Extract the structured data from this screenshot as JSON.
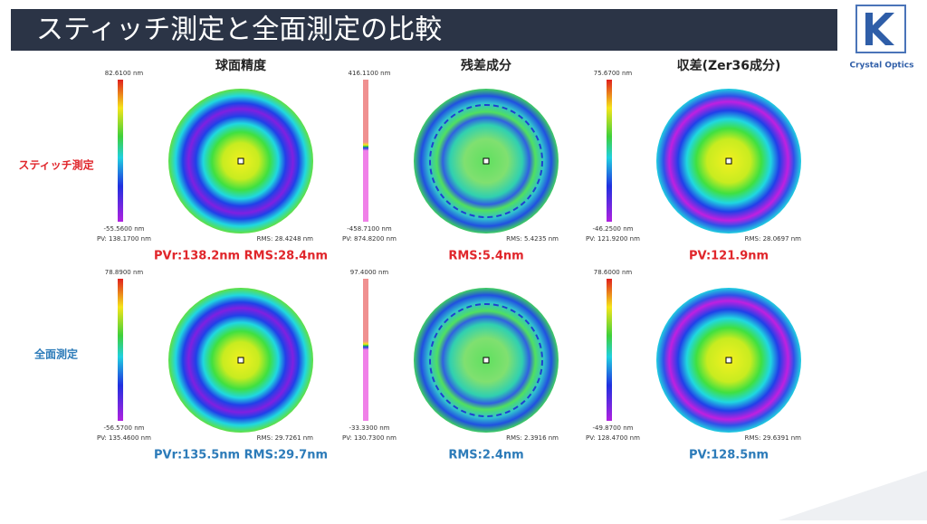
{
  "header": {
    "title": "スティッチ測定と全面測定の比較",
    "logo": "Crystal Optics"
  },
  "columns": [
    "球面精度",
    "残差成分",
    "収差(Zer36成分)"
  ],
  "rows": [
    {
      "label": "スティッチ測定",
      "color": "#e0262b",
      "panels": [
        {
          "max": "82.6100 nm",
          "min": "-55.5600 nm",
          "pv": "PV: 138.1700 nm",
          "rms": "RMS: 28.4248 nm",
          "result": "PVr:138.2nm RMS:28.4nm"
        },
        {
          "max": "416.1100 nm",
          "min": "-458.7100 nm",
          "pv": "PV: 874.8200 nm",
          "rms": "RMS: 5.4235 nm",
          "result": "RMS:5.4nm"
        },
        {
          "max": "75.6700 nm",
          "min": "-46.2500 nm",
          "pv": "PV: 121.9200 nm",
          "rms": "RMS: 28.0697 nm",
          "result": "PV:121.9nm"
        }
      ]
    },
    {
      "label": "全面測定",
      "color": "#2c7bb9",
      "panels": [
        {
          "max": "78.8900 nm",
          "min": "-56.5700 nm",
          "pv": "PV: 135.4600 nm",
          "rms": "RMS: 29.7261 nm",
          "result": "PVr:135.5nm RMS:29.7nm"
        },
        {
          "max": "97.4000 nm",
          "min": "-33.3300 nm",
          "pv": "PV: 130.7300 nm",
          "rms": "RMS: 2.3916 nm",
          "result": "RMS:2.4nm"
        },
        {
          "max": "78.6000 nm",
          "min": "-49.8700 nm",
          "pv": "PV: 128.4700 nm",
          "rms": "RMS: 29.6391 nm",
          "result": "PV:128.5nm"
        }
      ]
    }
  ]
}
